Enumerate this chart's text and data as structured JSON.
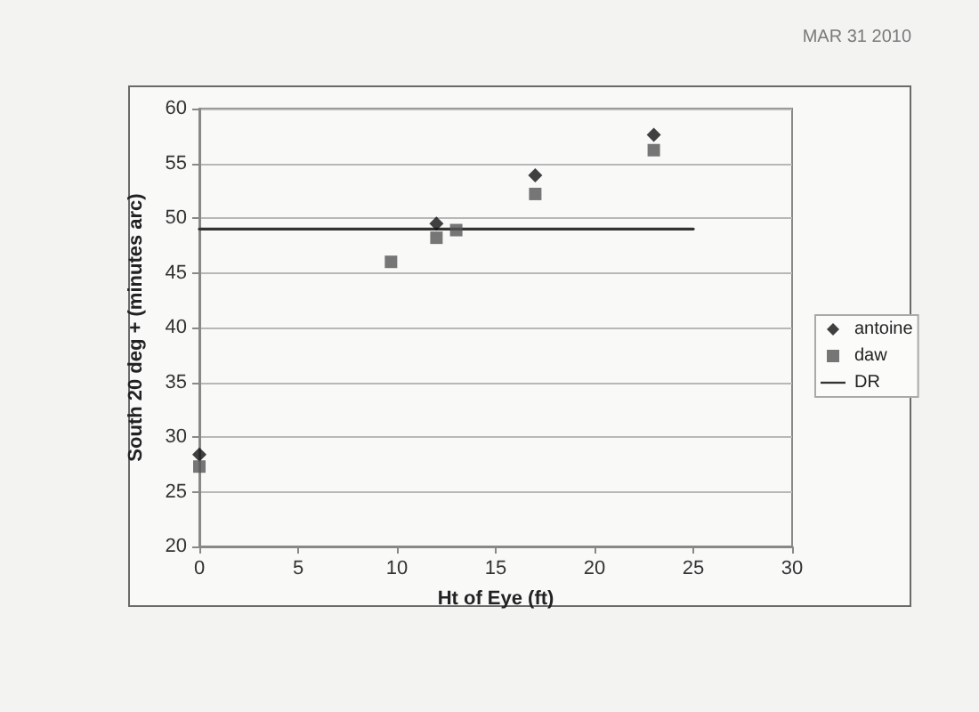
{
  "chart_data": {
    "type": "scatter",
    "xlabel": "Ht of Eye (ft)",
    "ylabel": "South 20 deg + (minutes arc)",
    "annotations": [
      "MAR 31 2010"
    ],
    "series": [
      {
        "name": "antoine",
        "color": "#111111",
        "marker": "diamond",
        "x": [
          0,
          12,
          17,
          23
        ],
        "values": [
          28.4,
          49.5,
          53.9,
          57.6
        ]
      },
      {
        "name": "daw",
        "color": "#555555",
        "marker": "square",
        "x": [
          0,
          9.7,
          12,
          13,
          17,
          23
        ],
        "values": [
          27.3,
          46.0,
          48.2,
          48.9,
          52.2,
          56.2
        ]
      },
      {
        "name": "DR",
        "type": "line",
        "color": "#333333",
        "marker": "none",
        "line_style": "solid",
        "x": [
          0,
          25
        ],
        "values": [
          49,
          49
        ]
      }
    ],
    "xlim": [
      0,
      30
    ],
    "xticks": [
      0,
      5,
      10,
      15,
      20,
      25,
      30
    ],
    "ylim": [
      20,
      60
    ],
    "yticks": [
      20,
      25,
      30,
      35,
      40,
      45,
      50,
      55,
      60
    ],
    "grid": "y",
    "legend": "right"
  }
}
